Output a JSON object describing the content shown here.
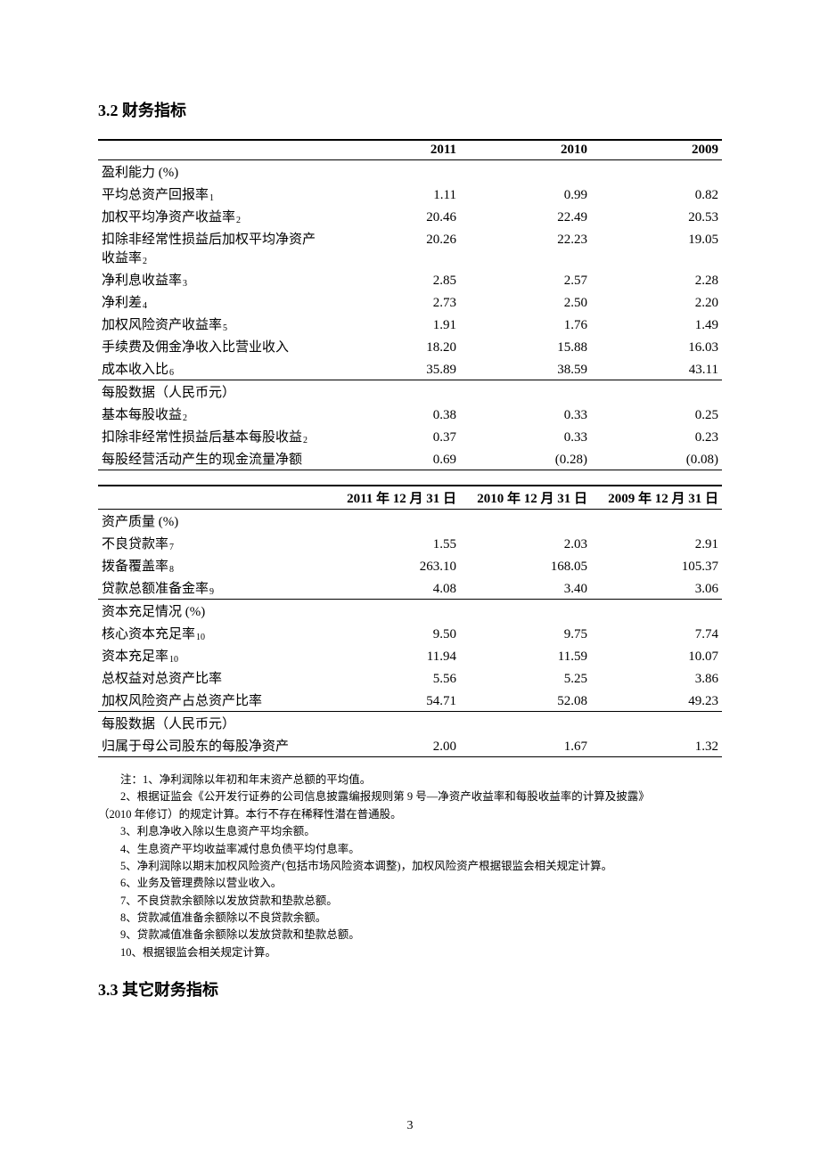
{
  "section1_title": "3.2 财务指标",
  "section2_title": "3.3 其它财务指标",
  "page_number": "3",
  "table1": {
    "headers": [
      "",
      "2011",
      "2010",
      "2009"
    ],
    "groups": [
      {
        "header": "盈利能力 (%)",
        "rows": [
          {
            "label": "平均总资产回报率",
            "sub": "1",
            "c": [
              "1.11",
              "0.99",
              "0.82"
            ]
          },
          {
            "label": "加权平均净资产收益率",
            "sub": "2",
            "c": [
              "20.46",
              "22.49",
              "20.53"
            ]
          },
          {
            "label": "扣除非经常性损益后加权平均净资产收益率",
            "sub": "2",
            "c": [
              "20.26",
              "22.23",
              "19.05"
            ]
          },
          {
            "label": "净利息收益率",
            "sub": "3",
            "c": [
              "2.85",
              "2.57",
              "2.28"
            ]
          },
          {
            "label": "净利差",
            "sub": "4",
            "c": [
              "2.73",
              "2.50",
              "2.20"
            ]
          },
          {
            "label": "加权风险资产收益率",
            "sub": "5",
            "c": [
              "1.91",
              "1.76",
              "1.49"
            ]
          },
          {
            "label": "手续费及佣金净收入比营业收入",
            "sub": "",
            "c": [
              "18.20",
              "15.88",
              "16.03"
            ]
          },
          {
            "label": "成本收入比",
            "sub": "6",
            "c": [
              "35.89",
              "38.59",
              "43.11"
            ]
          }
        ]
      },
      {
        "header": "每股数据（人民币元）",
        "rows": [
          {
            "label": "基本每股收益",
            "sub": "2",
            "c": [
              "0.38",
              "0.33",
              "0.25"
            ]
          },
          {
            "label": "扣除非经常性损益后基本每股收益",
            "sub": "2",
            "c": [
              "0.37",
              "0.33",
              "0.23"
            ]
          },
          {
            "label": "每股经营活动产生的现金流量净额",
            "sub": "",
            "c": [
              "0.69",
              "(0.28)",
              "(0.08)"
            ]
          }
        ]
      }
    ]
  },
  "table2": {
    "headers": [
      "",
      "2011 年 12 月 31 日",
      "2010 年 12 月 31 日",
      "2009 年 12 月 31 日"
    ],
    "groups": [
      {
        "header": "资产质量 (%)",
        "rows": [
          {
            "label": "不良贷款率",
            "sub": "7",
            "c": [
              "1.55",
              "2.03",
              "2.91"
            ]
          },
          {
            "label": "拨备覆盖率",
            "sub": "8",
            "c": [
              "263.10",
              "168.05",
              "105.37"
            ]
          },
          {
            "label": "贷款总额准备金率",
            "sub": "9",
            "c": [
              "4.08",
              "3.40",
              "3.06"
            ]
          }
        ]
      },
      {
        "header": "资本充足情况 (%)",
        "rows": [
          {
            "label": "核心资本充足率",
            "sub": "10",
            "c": [
              "9.50",
              "9.75",
              "7.74"
            ]
          },
          {
            "label": "资本充足率",
            "sub": "10",
            "c": [
              "11.94",
              "11.59",
              "10.07"
            ]
          },
          {
            "label": "总权益对总资产比率",
            "sub": "",
            "c": [
              "5.56",
              "5.25",
              "3.86"
            ]
          },
          {
            "label": "加权风险资产占总资产比率",
            "sub": "",
            "c": [
              "54.71",
              "52.08",
              "49.23"
            ]
          }
        ]
      },
      {
        "header": "每股数据（人民币元）",
        "rows": [
          {
            "label": "归属于母公司股东的每股净资产",
            "sub": "",
            "c": [
              "2.00",
              "1.67",
              "1.32"
            ]
          }
        ]
      }
    ]
  },
  "notes": [
    "注：1、净利润除以年初和年末资产总额的平均值。",
    "2、根据证监会《公开发行证券的公司信息披露编报规则第 9 号—净资产收益率和每股收益率的计算及披露》",
    "（2010 年修订）的规定计算。本行不存在稀释性潜在普通股。",
    "3、利息净收入除以生息资产平均余额。",
    "4、生息资产平均收益率减付息负债平均付息率。",
    "5、净利润除以期末加权风险资产(包括市场风险资本调整)，加权风险资产根据银监会相关规定计算。",
    "6、业务及管理费除以营业收入。",
    "7、不良贷款余额除以发放贷款和垫款总额。",
    "8、贷款减值准备余额除以不良贷款余额。",
    "9、贷款减值准备余额除以发放贷款和垫款总额。",
    "10、根据银监会相关规定计算。"
  ],
  "cols": {
    "label_w": "37%",
    "num_w": "21%"
  }
}
